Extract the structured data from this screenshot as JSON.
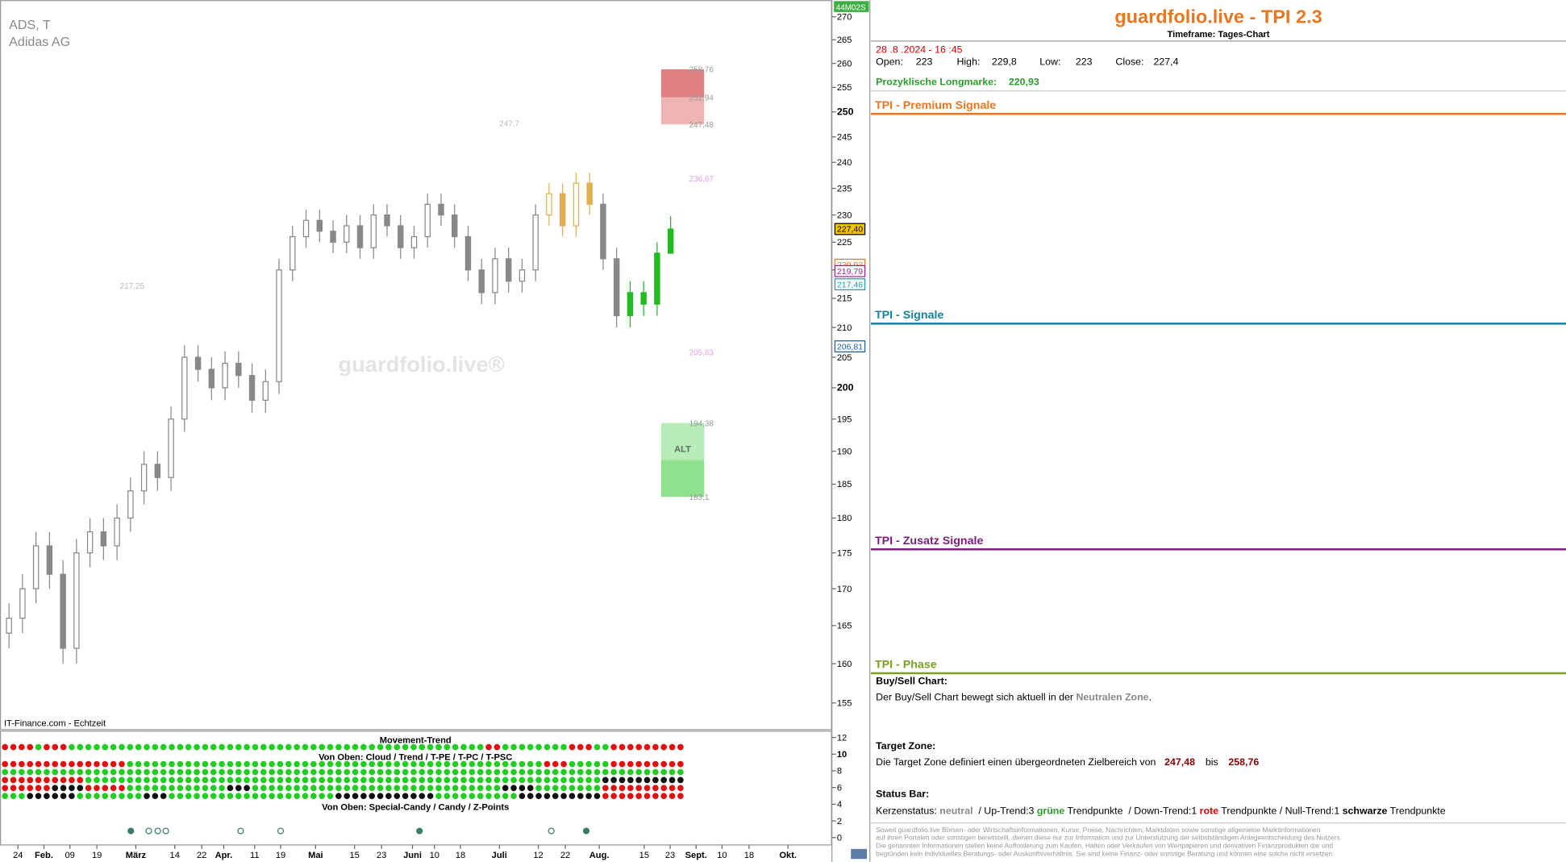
{
  "chart_data": {
    "type": "candlestick",
    "symbol": "ADS, T",
    "name": "Adidas AG",
    "status": "44M02S",
    "source": "IT-Finance.com - Echtzeit",
    "watermark": "guardfolio.live®",
    "open": [
      164,
      166,
      170,
      176,
      172,
      162,
      175,
      178,
      176,
      180,
      184,
      188,
      186,
      195,
      205,
      203,
      200,
      204,
      202,
      198,
      201,
      220,
      226,
      229,
      227,
      225,
      228,
      224,
      230,
      228,
      224,
      226,
      232,
      230,
      226,
      220,
      216,
      222,
      218,
      220,
      230,
      234,
      228,
      236,
      232,
      222,
      212,
      216,
      214,
      223
    ],
    "high": [
      168,
      172,
      178,
      178,
      174,
      177,
      180,
      180,
      182,
      186,
      190,
      190,
      197,
      207,
      207,
      205,
      206,
      206,
      204,
      203,
      222,
      228,
      231,
      231,
      229,
      230,
      230,
      232,
      232,
      230,
      228,
      234,
      234,
      232,
      228,
      222,
      224,
      224,
      222,
      232,
      236,
      236,
      238,
      238,
      234,
      224,
      218,
      218,
      225,
      229.8
    ],
    "low": [
      162,
      164,
      168,
      170,
      160,
      160,
      173,
      174,
      174,
      178,
      182,
      184,
      184,
      193,
      201,
      198,
      198,
      200,
      196,
      196,
      199,
      218,
      224,
      225,
      223,
      223,
      222,
      222,
      226,
      222,
      222,
      224,
      228,
      224,
      218,
      214,
      214,
      216,
      216,
      218,
      228,
      226,
      226,
      230,
      220,
      210,
      210,
      212,
      212,
      223
    ],
    "close": [
      166,
      170,
      176,
      172,
      162,
      175,
      178,
      176,
      180,
      184,
      188,
      186,
      195,
      205,
      203,
      200,
      204,
      202,
      198,
      201,
      220,
      226,
      229,
      227,
      225,
      228,
      224,
      230,
      228,
      224,
      226,
      232,
      230,
      226,
      220,
      216,
      222,
      218,
      220,
      230,
      234,
      228,
      236,
      232,
      222,
      212,
      216,
      214,
      223,
      227.4
    ],
    "log_scale": true,
    "ylim": [
      152,
      273
    ],
    "yticks": [
      270,
      265,
      260,
      255,
      250,
      245,
      240,
      235,
      230,
      225,
      220,
      215,
      210,
      205,
      200,
      195,
      190,
      185,
      180,
      175,
      170,
      165,
      160,
      155
    ],
    "x_labels": [
      "24",
      "Feb.",
      "09",
      "19",
      "März",
      "14",
      "22",
      "Apr.",
      "11",
      "19",
      "Mai",
      "15",
      "23",
      "Juni",
      "10",
      "18",
      "Juli",
      "12",
      "22",
      "Aug.",
      "15",
      "23",
      "Sept.",
      "10",
      "18",
      "Okt."
    ],
    "price_tags": [
      {
        "value": 227.4,
        "label": "227,40"
      },
      {
        "value": 220.93,
        "label": "220,93"
      },
      {
        "value": 219.79,
        "label": "219,79"
      },
      {
        "value": 217.46,
        "label": "217,46"
      },
      {
        "value": 206.81,
        "label": "206,81"
      }
    ],
    "target_zone": {
      "top": {
        "value": 258.76,
        "label": "258,76"
      },
      "mid": {
        "value": 252.94,
        "label": "252,94"
      },
      "bottom": {
        "value": 247.48,
        "label": "247,48"
      }
    },
    "alt_zone": {
      "label": "ALT",
      "top": {
        "value": 194.38,
        "label": "194,38"
      },
      "bottom": {
        "value": 183.1,
        "label": "183,1"
      }
    },
    "annotations": [
      {
        "value": 236.87,
        "label": "236,87"
      },
      {
        "value": 205.83,
        "label": "205,83"
      },
      {
        "value": 247.7,
        "label": "247,7"
      },
      {
        "value": 217.25,
        "label": "217,25"
      }
    ],
    "indicator": {
      "title": "Movement-Trend",
      "label_top": "Von Oben: Cloud / Trend / T-PE / T-PC / T-PSC",
      "label_bottom": "Von Oben: Special-Candy / Candy / Z-Points",
      "ylim": [
        -1,
        13
      ],
      "yticks": [
        12,
        10,
        8,
        6,
        4,
        2,
        0
      ]
    }
  },
  "panel": {
    "title": "guardfolio.live - TPI 2.3",
    "subtitle": "Timeframe: Tages-Chart",
    "datetime": "28 .8 .2024 - 16 :45",
    "ohlc": [
      [
        "Open:",
        "223"
      ],
      [
        "High:",
        "229,8"
      ],
      [
        "Low:",
        "223"
      ],
      [
        "Close:",
        "227,4"
      ]
    ],
    "longmarke": {
      "label": "Prozyklische Longmarke:",
      "value": "220,93"
    },
    "sections": [
      "TPI - Premium Signale",
      "TPI - Signale",
      "TPI - Zusatz Signale",
      "TPI - Phase"
    ],
    "buy_sell": {
      "heading": "Buy/Sell Chart:",
      "parts": [
        "Der Buy/Sell Chart bewegt sich aktuell in der ",
        "Neutralen Zone",
        "."
      ]
    },
    "target": {
      "heading": "Target Zone:",
      "text": "Die Target Zone definiert einen übergeordneten Zielbereich von",
      "from": "247,48",
      "mid": "bis",
      "to": "258,76"
    },
    "status_bar": {
      "heading": "Status Bar:",
      "parts": [
        "Kerzenstatus: ",
        "neutral",
        "  / Up-Trend:3 ",
        "grüne",
        " Trendpunkte  / Down-Trend:1 ",
        "rote",
        " Trendpunkte / Null-Trend:1 ",
        "schwarze",
        " Trendpunkte"
      ]
    },
    "disclaimer": [
      "Soweit guardfolio.live Börsen- oder Wirtschaftsinformationen, Kurse, Preise, Nachrichten, Marktdaten sowie sonstige allgemeine Marktinformationen",
      "auf ihren Portalen oder sonstigen bereitstellt, dienen diese nur zur Information und zur Unterstützung der selbstständigen Anlageentscheidung des Nutzers.",
      "Die genannten Informationen stellen keine Aufforderung zum Kaufen, Halten oder Verkaufen von Wertpapieren und derivativen Finanzprodukten dar und",
      "begründen kein individuelles Beratungs- oder Auskunftsverhältnis. Sie sind keine Finanz- oder sonstige Beratung und können eine solche nicht ersetzen."
    ]
  }
}
